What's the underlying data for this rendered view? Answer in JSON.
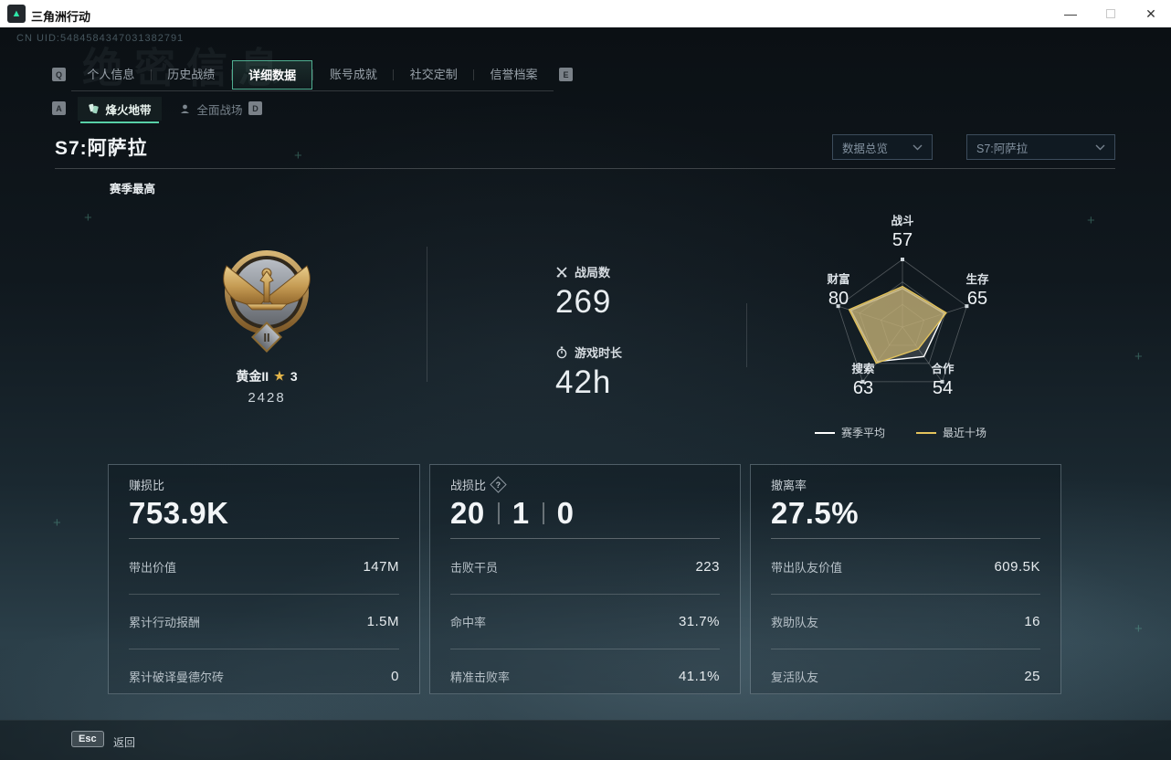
{
  "window": {
    "title": "三角洲行动",
    "minimize_icon": "—",
    "close_icon": "✕"
  },
  "header": {
    "uid": "CN UID:5484584347031382791",
    "ghost_title": "绝密信息"
  },
  "tabs": {
    "left_key": "Q",
    "right_key": "E",
    "active_index": 2,
    "items": [
      {
        "label": "个人信息"
      },
      {
        "label": "历史战绩"
      },
      {
        "label": "详细数据"
      },
      {
        "label": "账号成就"
      },
      {
        "label": "社交定制"
      },
      {
        "label": "信誉档案"
      }
    ]
  },
  "subtabs": {
    "left_key": "A",
    "right_key": "D",
    "active_index": 0,
    "items": [
      {
        "label": "烽火地带"
      },
      {
        "label": "全面战场"
      }
    ]
  },
  "season": {
    "title": "S7:阿萨拉",
    "context_label": "赛季最高"
  },
  "filters": {
    "overview_dropdown": "数据总览",
    "season_dropdown": "S7:阿萨拉"
  },
  "rank": {
    "tier_name": "黄金II",
    "tier_numeral": "II",
    "star_icon": "★",
    "star_count": "3",
    "points": "2428"
  },
  "summary": {
    "battles": {
      "label": "战局数",
      "value": "269"
    },
    "playtime": {
      "label": "游戏时长",
      "value": "42h"
    }
  },
  "chart_data": {
    "type": "radar",
    "max": 100,
    "grid_levels": 3,
    "legend_position": "bottom",
    "axes": [
      {
        "label": "战斗",
        "value": 57
      },
      {
        "label": "生存",
        "value": 65
      },
      {
        "label": "合作",
        "value": 54
      },
      {
        "label": "搜索",
        "value": 63
      },
      {
        "label": "财富",
        "value": 80
      }
    ],
    "series": [
      {
        "name": "赛季平均",
        "color": "#ffffff",
        "fill": "rgba(255,255,255,0.14)",
        "values": [
          57,
          65,
          54,
          63,
          80
        ]
      },
      {
        "name": "最近十场",
        "color": "#e3c35c",
        "fill": "rgba(190,170,112,0.78)",
        "values": [
          60,
          68,
          40,
          66,
          83
        ]
      }
    ]
  },
  "cards": [
    {
      "title": "赚损比",
      "value": "753.9K",
      "rows": [
        {
          "label": "带出价值",
          "value": "147M"
        },
        {
          "label": "累计行动报酬",
          "value": "1.5M"
        },
        {
          "label": "累计破译曼德尔砖",
          "value": "0"
        }
      ]
    },
    {
      "title": "战损比",
      "help_icon": "?",
      "value_parts": [
        "20",
        "1",
        "0"
      ],
      "rows": [
        {
          "label": "击败干员",
          "value": "223"
        },
        {
          "label": "命中率",
          "value": "31.7%"
        },
        {
          "label": "精准击败率",
          "value": "41.1%"
        }
      ]
    },
    {
      "title": "撤离率",
      "value": "27.5%",
      "rows": [
        {
          "label": "带出队友价值",
          "value": "609.5K"
        },
        {
          "label": "救助队友",
          "value": "16"
        },
        {
          "label": "复活队友",
          "value": "25"
        }
      ]
    }
  ],
  "footer": {
    "key": "Esc",
    "label": "返回"
  }
}
